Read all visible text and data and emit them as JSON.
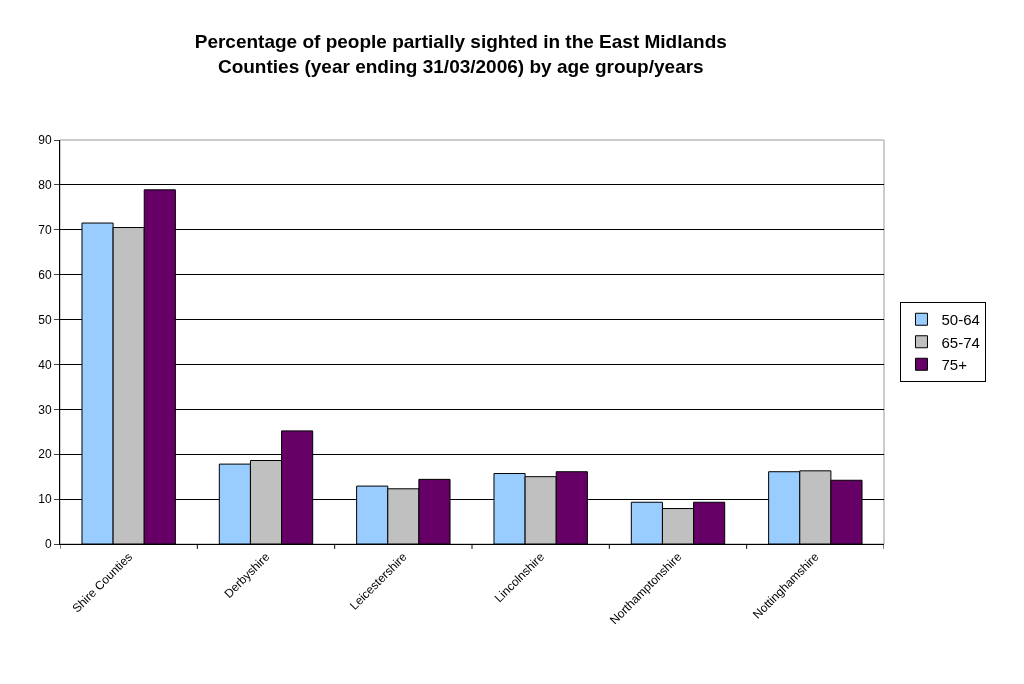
{
  "chart_data": {
    "type": "bar",
    "title": "Percentage of people partially sighted in the East Midlands\nCounties (year ending 31/03/2006) by age group/years",
    "categories": [
      "Shire Counties",
      "Derbyshire",
      "Leicestershire",
      "Lincolnshire",
      "Northamptonshire",
      "Nottinghamshire"
    ],
    "series": [
      {
        "name": "50-64",
        "color": "#99ccff",
        "values": [
          71.5,
          17.8,
          12.9,
          15.7,
          9.3,
          16.1
        ]
      },
      {
        "name": "65-74",
        "color": "#c0c0c0",
        "values": [
          70.5,
          18.6,
          12.3,
          15.0,
          7.9,
          16.3
        ]
      },
      {
        "name": "75+",
        "color": "#660066",
        "values": [
          78.9,
          25.2,
          14.4,
          16.1,
          9.3,
          14.2
        ]
      }
    ],
    "ylim": [
      0,
      90
    ],
    "yticks": [
      0,
      10,
      20,
      30,
      40,
      50,
      60,
      70,
      80,
      90
    ],
    "grid": "y",
    "legend": "right"
  }
}
